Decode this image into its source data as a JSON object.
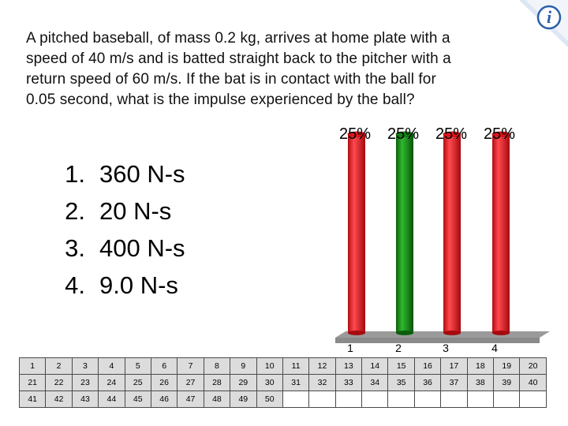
{
  "question": {
    "lines": [
      "A pitched baseball, of mass 0.2 kg, arrives at home plate with a",
      "speed of 40 m/s and is batted straight back to the pitcher with a",
      "return speed of 60 m/s. If the bat is in contact with the ball for",
      "0.05 second, what is the impulse experienced by the ball?"
    ]
  },
  "answers": [
    {
      "number": "1.",
      "text": "360 N-s"
    },
    {
      "number": "2.",
      "text": "20 N-s"
    },
    {
      "number": "3.",
      "text": "400 N-s"
    },
    {
      "number": "4.",
      "text": "9.0 N-s"
    }
  ],
  "colors": {
    "red": "#e8151b",
    "green": "#128a12",
    "floor": "#9a9a9a",
    "grid_active": "#dcdcdc",
    "logo_blue": "#2a5fa8"
  },
  "logo": {
    "icon": "i-clicker-logo-icon"
  },
  "chart_data": {
    "type": "bar",
    "categories": [
      "1",
      "2",
      "3",
      "4"
    ],
    "values": [
      25,
      25,
      25,
      25
    ],
    "value_labels": [
      "25%",
      "25%",
      "25%",
      "25%"
    ],
    "bar_colors": [
      "#e8151b",
      "#128a12",
      "#e8151b",
      "#e8151b"
    ],
    "ylim": [
      0,
      25
    ],
    "style": "3d-cylinder"
  },
  "participants": {
    "rows": [
      [
        "1",
        "2",
        "3",
        "4",
        "5",
        "6",
        "7",
        "8",
        "9",
        "10",
        "11",
        "12",
        "13",
        "14",
        "15",
        "16",
        "17",
        "18",
        "19",
        "20"
      ],
      [
        "21",
        "22",
        "23",
        "24",
        "25",
        "26",
        "27",
        "28",
        "29",
        "30",
        "31",
        "32",
        "33",
        "34",
        "35",
        "36",
        "37",
        "38",
        "39",
        "40"
      ],
      [
        "41",
        "42",
        "43",
        "44",
        "45",
        "46",
        "47",
        "48",
        "49",
        "50",
        "",
        "",
        "",
        "",
        "",
        "",
        "",
        "",
        "",
        ""
      ]
    ],
    "active_count": 50
  }
}
